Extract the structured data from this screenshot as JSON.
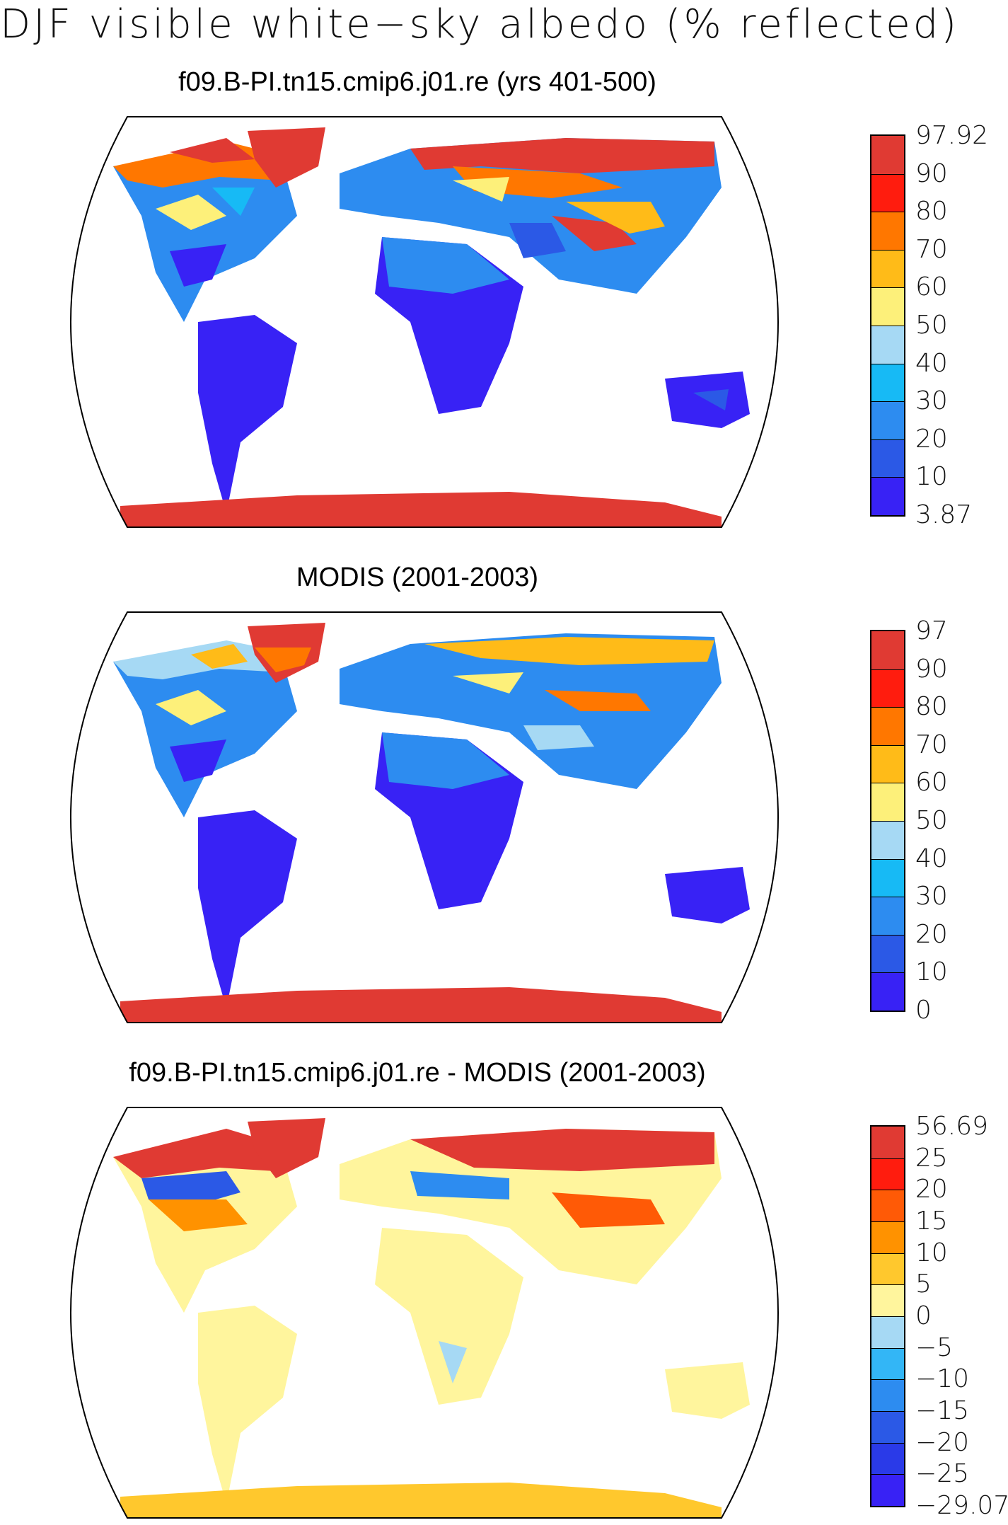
{
  "figure_title": "DJF visible white−sky albedo (% reflected)",
  "panels": [
    {
      "title": "f09.B-PI.tn15.cmip6.j01.re (yrs 401-500)",
      "colorbar": {
        "labels": [
          "97.92",
          "90",
          "80",
          "70",
          "60",
          "50",
          "40",
          "30",
          "20",
          "10",
          "3.87"
        ],
        "colors": [
          "#e03a33",
          "#ff1c0e",
          "#ff7700",
          "#ffbb18",
          "#fdf07a",
          "#a6d9f4",
          "#17baf5",
          "#2d8cf0",
          "#2b59e6",
          "#3822f5"
        ]
      }
    },
    {
      "title": "MODIS (2001-2003)",
      "colorbar": {
        "labels": [
          "97",
          "90",
          "80",
          "70",
          "60",
          "50",
          "40",
          "30",
          "20",
          "10",
          "0"
        ],
        "colors": [
          "#e03a33",
          "#ff1c0e",
          "#ff7700",
          "#ffbb18",
          "#fdf07a",
          "#a6d9f4",
          "#17baf5",
          "#2d8cf0",
          "#2b59e6",
          "#3822f5"
        ]
      }
    },
    {
      "title": "f09.B-PI.tn15.cmip6.j01.re - MODIS (2001-2003)",
      "colorbar": {
        "labels": [
          "56.69",
          "25",
          "20",
          "15",
          "10",
          "5",
          "0",
          "−5",
          "−10",
          "−15",
          "−20",
          "−25",
          "−29.07"
        ],
        "colors": [
          "#e03a33",
          "#ff1c0e",
          "#ff5a06",
          "#ff9200",
          "#ffc82d",
          "#fff59d",
          "#a6d9f4",
          "#33b6f6",
          "#2d8cf0",
          "#2b59e6",
          "#2a3ae8",
          "#3822f5"
        ]
      }
    }
  ]
}
